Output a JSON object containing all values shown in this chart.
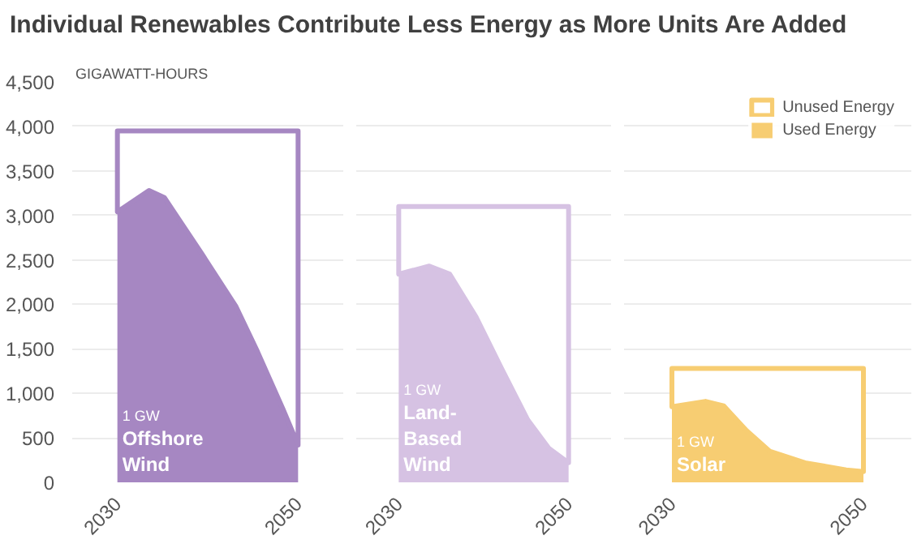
{
  "chart_data": [
    {
      "type": "area",
      "title": "Individual Renewables Contribute Less Energy as More Units Are Added",
      "ylabel": "GIGAWATT-HOURS",
      "stacked": true,
      "grid": "y",
      "x": [
        2030,
        2033.5,
        2035.2,
        2039.4,
        2043.1,
        2045.5,
        2048.3,
        2050
      ],
      "xlim": [
        2025,
        2055
      ],
      "xticks": [
        2030,
        2050
      ],
      "ylim": [
        0,
        4500
      ],
      "yticks": [
        0,
        500,
        {
          "value": 1000,
          "label": "1,000"
        },
        {
          "value": 1500,
          "label": "1,500"
        },
        {
          "value": 2000,
          "label": "2,000"
        },
        {
          "value": 2500,
          "label": "2,500"
        },
        {
          "value": 3000,
          "label": "3,000"
        },
        {
          "value": 3500,
          "label": "3,500"
        },
        {
          "value": 4000,
          "label": "4,000"
        },
        {
          "value": 4500,
          "label": "4,500"
        }
      ],
      "annotations": [
        "1 GW",
        "Offshore Wind"
      ],
      "series": [
        {
          "color": "#a687c2",
          "values": [
            3040,
            3280,
            3200,
            2560,
            1980,
            1470,
            830,
            420
          ]
        },
        {
          "color": "#ffffff",
          "values": [
            910,
            670,
            750,
            1390,
            1970,
            2480,
            3120,
            3530
          ]
        }
      ]
    },
    {
      "type": "area",
      "stacked": true,
      "grid": "y",
      "tick_labels": "x",
      "x": [
        2030,
        2033.6,
        2036,
        2039.1,
        2042.1,
        2045.2,
        2047.7,
        2050
      ],
      "xlim": [
        2025,
        2055
      ],
      "xticks": [
        2030,
        2050
      ],
      "ylim": [
        0,
        4500
      ],
      "yticks": [
        0,
        500,
        1000,
        1500,
        2000,
        2500,
        3000,
        3500,
        4000,
        4500
      ],
      "annotations": [
        "1 GW",
        "Land-Based Wind"
      ],
      "series": [
        {
          "color": "#d6c2e3",
          "values": [
            2340,
            2430,
            2340,
            1860,
            1280,
            700,
            380,
            220
          ]
        },
        {
          "color": "#ffffff",
          "values": [
            760,
            670,
            760,
            1240,
            1820,
            2400,
            2720,
            2880
          ]
        }
      ]
    },
    {
      "type": "area",
      "stacked": true,
      "grid": "y",
      "tick_labels": "x",
      "legend": "top right",
      "x": [
        2030,
        2033.5,
        2035.4,
        2037.8,
        2040.2,
        2043.9,
        2048.2,
        2050
      ],
      "xlim": [
        2025,
        2055
      ],
      "xticks": [
        2030,
        2050
      ],
      "ylim": [
        0,
        4500
      ],
      "yticks": [
        0,
        500,
        1000,
        1500,
        2000,
        2500,
        3000,
        3500,
        4000,
        4500
      ],
      "annotations": [
        "1 GW",
        "Solar"
      ],
      "series": [
        {
          "name": "Used Energy",
          "color": "#f7cd72",
          "values": [
            850,
            910,
            860,
            580,
            350,
            220,
            140,
            120
          ]
        },
        {
          "name": "Unused Energy",
          "color": "#ffffff",
          "values": [
            430,
            370,
            420,
            700,
            930,
            1060,
            1140,
            1160
          ]
        }
      ]
    }
  ]
}
